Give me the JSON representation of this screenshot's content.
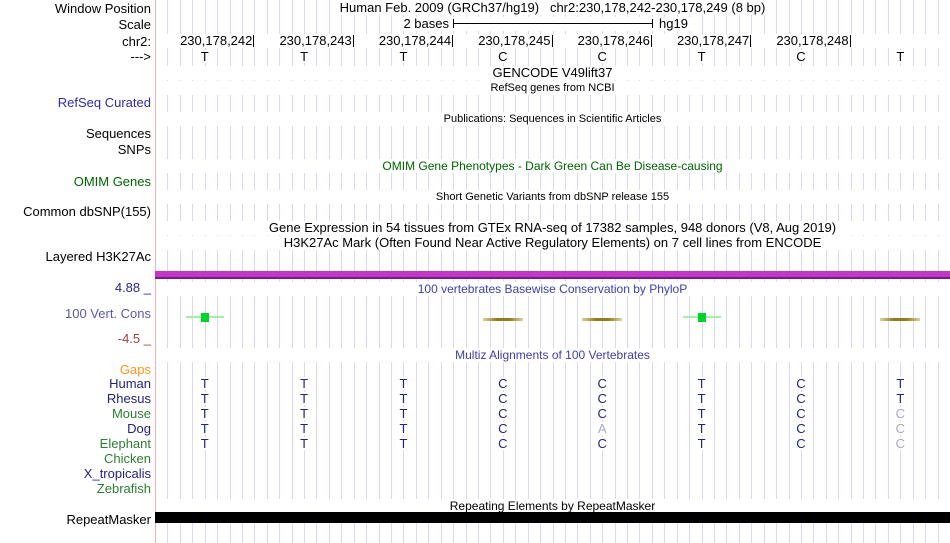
{
  "header": {
    "assembly_label": "Human Feb. 2009 (GRCh37/hg19)",
    "range_label": "chr2:230,178,242-230,178,249 (8 bp)"
  },
  "scale": {
    "label": "2 bases",
    "assembly": "hg19"
  },
  "ruler": {
    "positions": [
      "230,178,242",
      "230,178,243",
      "230,178,244",
      "230,178,245",
      "230,178,246",
      "230,178,247",
      "230,178,248"
    ],
    "bases": [
      "T",
      "T",
      "T",
      "C",
      "C",
      "T",
      "C",
      "T"
    ]
  },
  "side_labels": {
    "window_position": "Window Position",
    "scale": "Scale",
    "chrom": "chr2:",
    "arrow": "--->",
    "refseq": "RefSeq Curated",
    "sequences": "Sequences",
    "snps": "SNPs",
    "omim": "OMIM Genes",
    "dbsnp": "Common dbSNP(155)",
    "h3k27ac": "Layered H3K27Ac",
    "vert_cons": "100 Vert. Cons",
    "repeatmasker": "RepeatMasker"
  },
  "tracks": {
    "gencode_title": "GENCODE V49lift37",
    "refseq_subtitle": "RefSeq genes from NCBI",
    "publications_title": "Publications: Sequences in Scientific Articles",
    "omim_title": "OMIM Gene Phenotypes - Dark Green Can Be Disease-causing",
    "dbsnp_title": "Short Genetic Variants from dbSNP release 155",
    "gtex_title": "Gene Expression in 54 tissues from GTEx RNA-seq of 17382 samples, 948 donors (V8, Aug 2019)",
    "h3k27ac_title": "H3K27Ac Mark (Often Found Near Active Regulatory Elements) on 7 cell lines from ENCODE",
    "phylop_title": "100 vertebrates Basewise Conservation by PhyloP",
    "multiz_title": "Multiz Alignments of 100 Vertebrates",
    "repeat_title": "Repeating Elements by RepeatMasker"
  },
  "conservation": {
    "max_label": "4.88 _",
    "min_label": "-4.5 _",
    "marks": [
      {
        "base": 0,
        "sign": "positive"
      },
      {
        "base": 3,
        "sign": "negative"
      },
      {
        "base": 4,
        "sign": "negative"
      },
      {
        "base": 5,
        "sign": "positive"
      },
      {
        "base": 7,
        "sign": "negative"
      }
    ]
  },
  "alignment": {
    "gaps_label": "Gaps",
    "rows": [
      {
        "species": "Human",
        "label_color": "navy",
        "bases": [
          "T",
          "T",
          "T",
          "C",
          "C",
          "T",
          "C",
          "T"
        ],
        "low_quality": []
      },
      {
        "species": "Rhesus",
        "label_color": "navy",
        "bases": [
          "T",
          "T",
          "T",
          "C",
          "C",
          "T",
          "C",
          "T"
        ],
        "low_quality": []
      },
      {
        "species": "Mouse",
        "label_color": "green",
        "bases": [
          "T",
          "T",
          "T",
          "C",
          "C",
          "T",
          "C",
          "C"
        ],
        "low_quality": [
          7
        ]
      },
      {
        "species": "Dog",
        "label_color": "navy",
        "bases": [
          "T",
          "T",
          "T",
          "C",
          "A",
          "T",
          "C",
          "C"
        ],
        "low_quality": [
          4,
          7
        ]
      },
      {
        "species": "Elephant",
        "label_color": "green",
        "bases": [
          "T",
          "T",
          "T",
          "C",
          "C",
          "T",
          "C",
          "C"
        ],
        "low_quality": [
          7
        ]
      },
      {
        "species": "Chicken",
        "label_color": "green",
        "bases": [],
        "low_quality": []
      },
      {
        "species": "X_tropicalis",
        "label_color": "navy",
        "bases": [],
        "low_quality": []
      },
      {
        "species": "Zebrafish",
        "label_color": "green",
        "bases": [],
        "low_quality": []
      }
    ]
  },
  "colors": {
    "grid_line": "#d8d8f3",
    "edge_line": "#f2b0b0",
    "magenta_bar": "#c436c4",
    "magenta_bar_edge": "#70218f",
    "repeat_bar": "#000000",
    "link_blue": "#2d2da8",
    "dark_green": "#006400",
    "title_blue": "#3e3eae",
    "navy": "#23237d",
    "light_base": "#a8a8cf",
    "species_green": "#2e7d32",
    "gaps_orange": "#ff9421",
    "cons_max": "#2a2a90",
    "cons_min": "#9c4444",
    "vert_cons": "#5a5aa8",
    "pos_line": "#a8eda8",
    "pos_square": "#00d42c",
    "neg_center": "#8f7d1f",
    "neg_edge": "#dbd29e"
  }
}
